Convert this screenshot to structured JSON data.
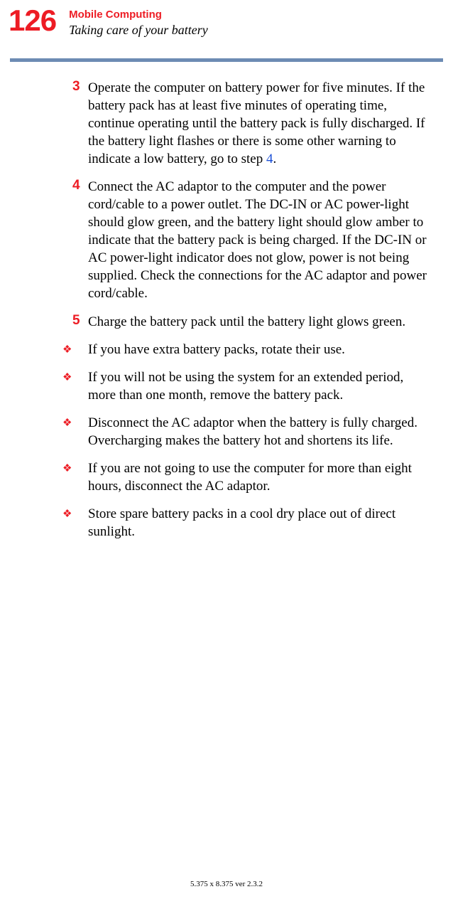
{
  "header": {
    "page_number": "126",
    "chapter_title": "Mobile Computing",
    "section_title": "Taking care of your battery"
  },
  "divider_color": "#6d8bb3",
  "accent_color": "#ed1c24",
  "link_color": "#1a4fd6",
  "steps": [
    {
      "num": "3",
      "text_before": "Operate the computer on battery power for five minutes. If the battery pack has at least five minutes of operating time, continue operating until the battery pack is fully discharged. If the battery light flashes or there is some other warning to indicate a low battery, go to step ",
      "link": "4",
      "text_after": "."
    },
    {
      "num": "4",
      "text_before": "Connect the AC adaptor to the computer and the power cord/cable to a power outlet. The DC-IN or AC power-light should glow green, and the battery light should glow amber to indicate that the battery pack is being charged. If the DC-IN or AC power-light indicator does not glow, power is not being supplied. Check the connections for the AC adaptor and power cord/cable.",
      "link": "",
      "text_after": ""
    },
    {
      "num": "5",
      "text_before": "Charge the battery pack until the battery light glows green.",
      "link": "",
      "text_after": ""
    }
  ],
  "bullets": [
    {
      "text": "If you have extra battery packs, rotate their use."
    },
    {
      "text": "If you will not be using the system for an extended period, more than one month, remove the battery pack."
    },
    {
      "text": "Disconnect the AC adaptor when the battery is fully charged. Overcharging makes the battery hot and shortens its life."
    },
    {
      "text": "If you are not going to use the computer for more than eight hours, disconnect the AC adaptor."
    },
    {
      "text": "Store spare battery packs in a cool dry place out of direct sunlight."
    }
  ],
  "footer": "5.375 x 8.375 ver 2.3.2"
}
